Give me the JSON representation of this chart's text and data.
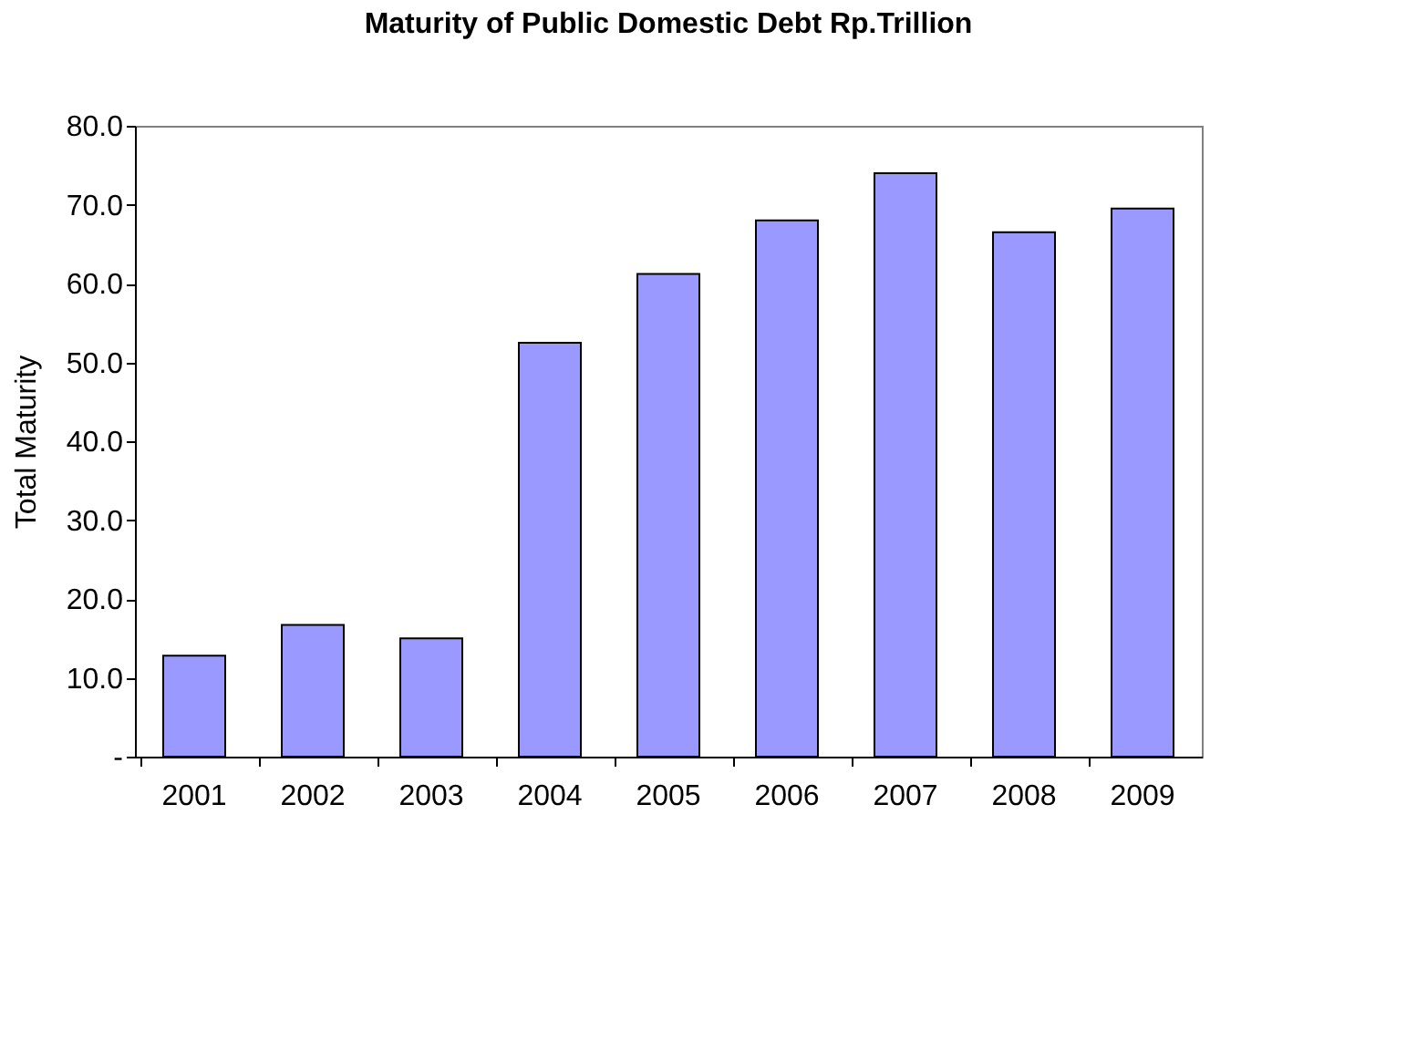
{
  "chart_data": {
    "type": "bar",
    "title": "Maturity of Public Domestic Debt Rp.Trillion",
    "ylabel": "Total Maturity",
    "categories": [
      "2001",
      "2002",
      "2003",
      "2004",
      "2005",
      "2006",
      "2007",
      "2008",
      "2009"
    ],
    "values": [
      12.8,
      16.7,
      15.0,
      52.5,
      61.2,
      68.0,
      74.0,
      66.5,
      69.5
    ],
    "color": "#9999ff",
    "ylim": [
      0,
      80
    ],
    "yticks": [
      {
        "value": 0,
        "label": "-"
      },
      {
        "value": 10,
        "label": "10.0"
      },
      {
        "value": 20,
        "label": "20.0"
      },
      {
        "value": 30,
        "label": "30.0"
      },
      {
        "value": 40,
        "label": "40.0"
      },
      {
        "value": 50,
        "label": "50.0"
      },
      {
        "value": 60,
        "label": "60.0"
      },
      {
        "value": 70,
        "label": "70.0"
      },
      {
        "value": 80,
        "label": "80.0"
      }
    ],
    "grid": false
  }
}
